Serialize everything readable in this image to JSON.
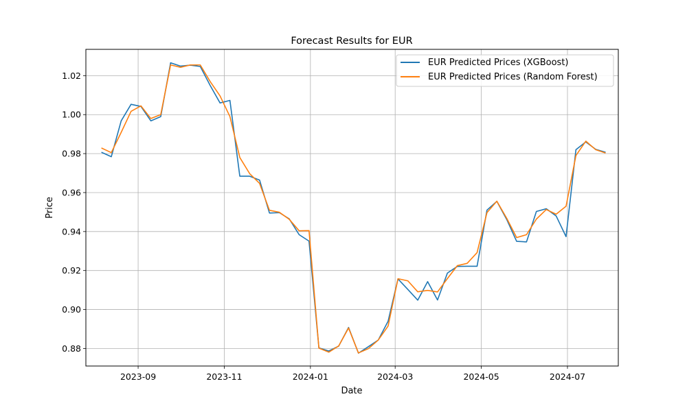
{
  "chart_data": {
    "type": "line",
    "title": "Forecast Results for EUR",
    "xlabel": "Date",
    "ylabel": "Price",
    "xlim": [
      "2023-07-26",
      "2024-08-06"
    ],
    "ylim": [
      0.871,
      1.0335
    ],
    "x_ticks": [
      {
        "date": "2023-09-01",
        "label": "2023-09"
      },
      {
        "date": "2023-11-01",
        "label": "2023-11"
      },
      {
        "date": "2024-01-01",
        "label": "2024-01"
      },
      {
        "date": "2024-03-01",
        "label": "2024-03"
      },
      {
        "date": "2024-05-01",
        "label": "2024-05"
      },
      {
        "date": "2024-07-01",
        "label": "2024-07"
      }
    ],
    "y_ticks": [
      0.88,
      0.9,
      0.92,
      0.94,
      0.96,
      0.98,
      1.0,
      1.02
    ],
    "y_tick_labels": [
      "0.88",
      "0.90",
      "0.92",
      "0.94",
      "0.96",
      "0.98",
      "1.00",
      "1.02"
    ],
    "grid": true,
    "legend_position": "top-right",
    "x": [
      "2023-08-06",
      "2023-08-13",
      "2023-08-20",
      "2023-08-27",
      "2023-09-03",
      "2023-09-10",
      "2023-09-17",
      "2023-09-24",
      "2023-10-01",
      "2023-10-08",
      "2023-10-15",
      "2023-10-22",
      "2023-10-29",
      "2023-11-05",
      "2023-11-12",
      "2023-11-19",
      "2023-11-26",
      "2023-12-03",
      "2023-12-10",
      "2023-12-17",
      "2023-12-24",
      "2023-12-31",
      "2024-01-07",
      "2024-01-14",
      "2024-01-21",
      "2024-01-28",
      "2024-02-04",
      "2024-02-11",
      "2024-02-18",
      "2024-02-25",
      "2024-03-03",
      "2024-03-10",
      "2024-03-17",
      "2024-03-24",
      "2024-03-31",
      "2024-04-07",
      "2024-04-14",
      "2024-04-21",
      "2024-04-28",
      "2024-05-05",
      "2024-05-12",
      "2024-05-19",
      "2024-05-26",
      "2024-06-02",
      "2024-06-09",
      "2024-06-16",
      "2024-06-23",
      "2024-06-30",
      "2024-07-07",
      "2024-07-14",
      "2024-07-21",
      "2024-07-28"
    ],
    "series": [
      {
        "name": "EUR Predicted Prices (XGBoost)",
        "color": "#1f77b4",
        "values": [
          0.9807,
          0.9784,
          0.9968,
          1.0053,
          1.0042,
          0.9968,
          0.999,
          1.0266,
          1.0249,
          1.0254,
          1.0247,
          1.015,
          1.006,
          1.0073,
          0.9684,
          0.9684,
          0.9664,
          0.9495,
          0.9497,
          0.9465,
          0.9384,
          0.9351,
          0.8803,
          0.8787,
          0.8812,
          0.8908,
          0.8776,
          0.8809,
          0.8843,
          0.894,
          0.9157,
          0.9103,
          0.9048,
          0.9143,
          0.9049,
          0.9187,
          0.9221,
          0.9222,
          0.9222,
          0.951,
          0.9555,
          0.9462,
          0.935,
          0.9347,
          0.9503,
          0.9517,
          0.948,
          0.9374,
          0.982,
          0.986,
          0.9822,
          0.9807
        ]
      },
      {
        "name": "EUR Predicted Prices (Random Forest)",
        "color": "#ff7f0e",
        "values": [
          0.9829,
          0.9805,
          0.9909,
          1.0017,
          1.0045,
          0.998,
          1.0,
          1.0255,
          1.0243,
          1.0255,
          1.0255,
          1.017,
          1.0096,
          0.999,
          0.978,
          0.9697,
          0.9647,
          0.9509,
          0.9499,
          0.9463,
          0.9404,
          0.9405,
          0.8802,
          0.8781,
          0.8813,
          0.8905,
          0.8777,
          0.8799,
          0.8843,
          0.8915,
          0.9158,
          0.9147,
          0.9091,
          0.9098,
          0.909,
          0.9159,
          0.9225,
          0.9237,
          0.9292,
          0.9497,
          0.9556,
          0.9468,
          0.9369,
          0.9384,
          0.9464,
          0.9513,
          0.9489,
          0.953,
          0.979,
          0.9864,
          0.982,
          0.9803
        ]
      }
    ]
  }
}
